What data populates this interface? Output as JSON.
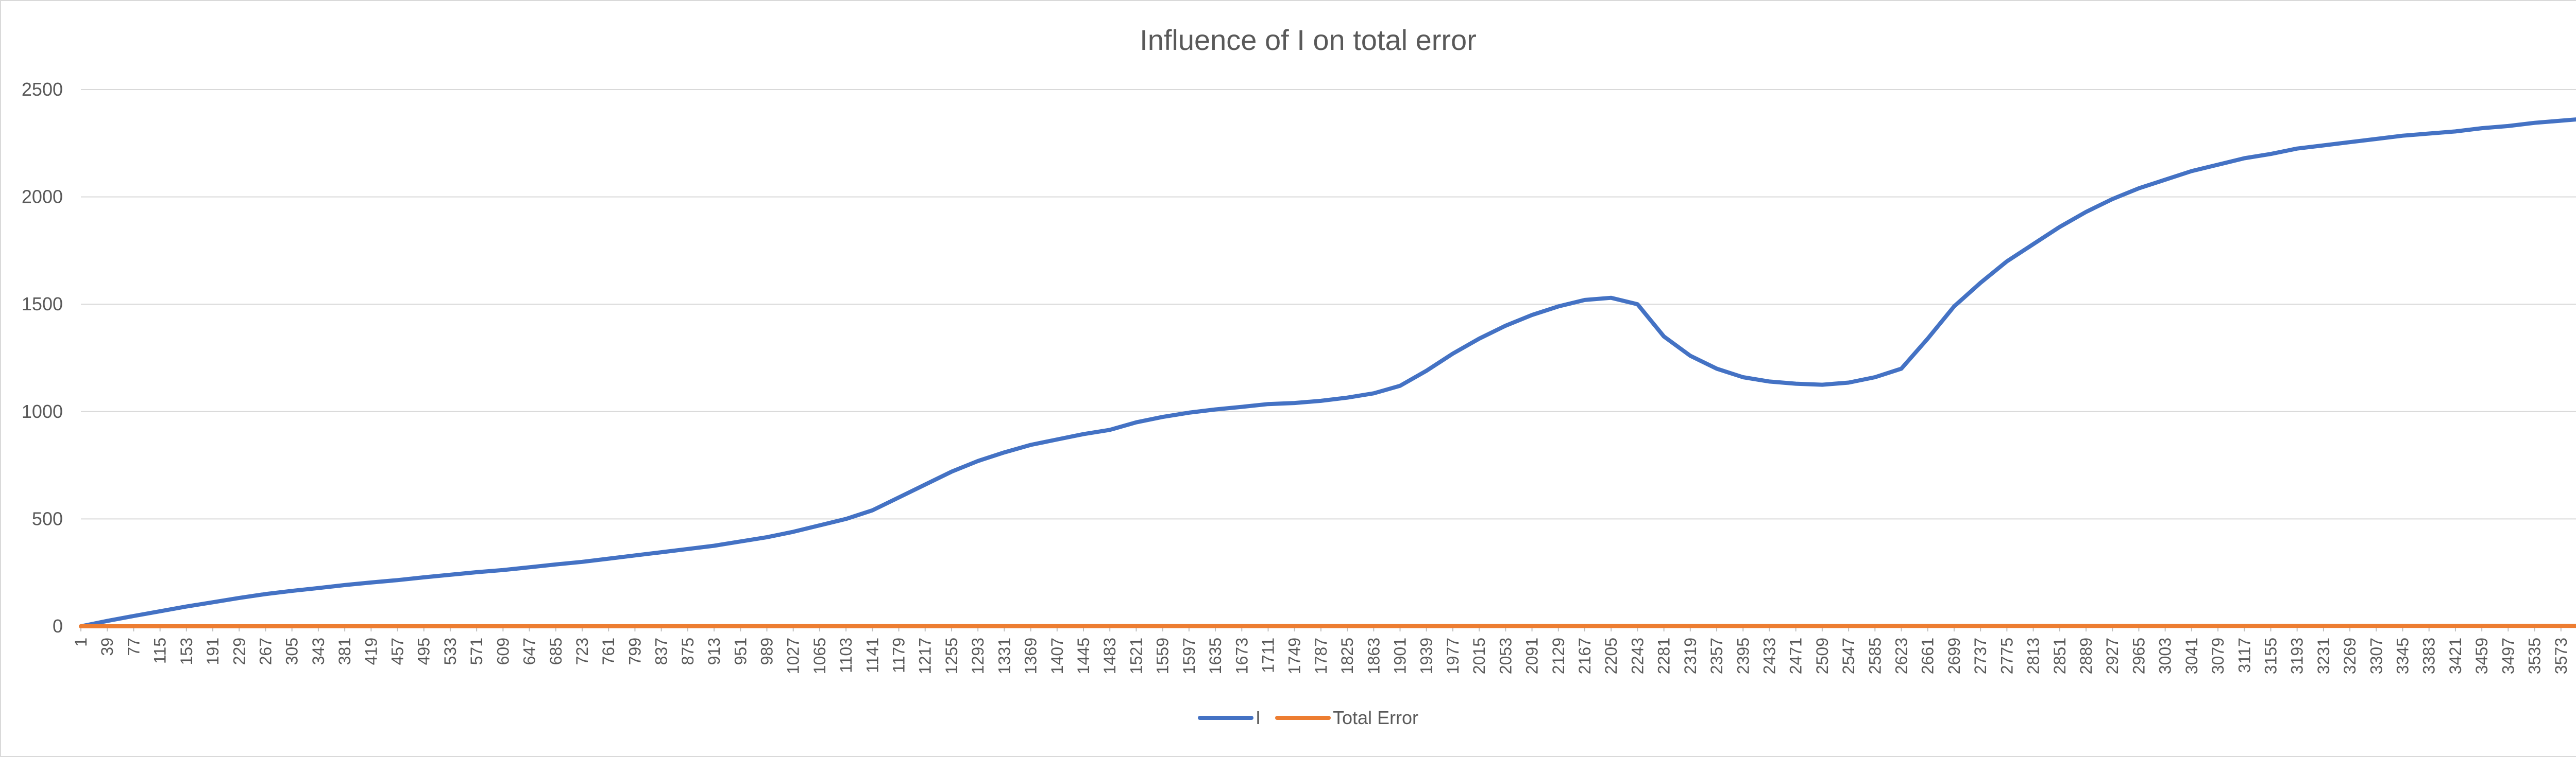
{
  "chart_data": {
    "type": "line",
    "title": "Influence of I on total error",
    "xlabel": "",
    "ylabel": "",
    "ylim": [
      0,
      2500
    ],
    "y_ticks": [
      0,
      500,
      1000,
      1500,
      2000,
      2500
    ],
    "x_range": [
      1,
      3611
    ],
    "x_ticks": [
      1,
      39,
      77,
      115,
      153,
      191,
      229,
      267,
      305,
      343,
      381,
      419,
      457,
      495,
      533,
      571,
      609,
      647,
      685,
      723,
      761,
      799,
      837,
      875,
      913,
      951,
      989,
      1027,
      1065,
      1103,
      1141,
      1179,
      1217,
      1255,
      1293,
      1331,
      1369,
      1407,
      1445,
      1483,
      1521,
      1559,
      1597,
      1635,
      1673,
      1711,
      1749,
      1787,
      1825,
      1863,
      1901,
      1939,
      1977,
      2015,
      2053,
      2091,
      2129,
      2167,
      2205,
      2243,
      2281,
      2319,
      2357,
      2395,
      2433,
      2471,
      2509,
      2547,
      2585,
      2623,
      2661,
      2699,
      2737,
      2775,
      2813,
      2851,
      2889,
      2927,
      2965,
      3003,
      3041,
      3079,
      3117,
      3155,
      3193,
      3231,
      3269,
      3307,
      3345,
      3383,
      3421,
      3459,
      3497,
      3535,
      3573
    ],
    "grid": true,
    "legend_position": "bottom",
    "series": [
      {
        "name": "I",
        "color": "#4472c4",
        "points": [
          [
            1,
            0
          ],
          [
            39,
            25
          ],
          [
            77,
            48
          ],
          [
            115,
            70
          ],
          [
            153,
            92
          ],
          [
            191,
            112
          ],
          [
            229,
            132
          ],
          [
            267,
            150
          ],
          [
            305,
            165
          ],
          [
            343,
            178
          ],
          [
            381,
            192
          ],
          [
            419,
            204
          ],
          [
            457,
            215
          ],
          [
            495,
            228
          ],
          [
            533,
            240
          ],
          [
            571,
            252
          ],
          [
            609,
            262
          ],
          [
            647,
            275
          ],
          [
            685,
            288
          ],
          [
            723,
            300
          ],
          [
            761,
            315
          ],
          [
            799,
            330
          ],
          [
            837,
            345
          ],
          [
            875,
            360
          ],
          [
            913,
            375
          ],
          [
            951,
            395
          ],
          [
            989,
            415
          ],
          [
            1027,
            440
          ],
          [
            1065,
            470
          ],
          [
            1103,
            500
          ],
          [
            1141,
            540
          ],
          [
            1179,
            600
          ],
          [
            1217,
            660
          ],
          [
            1255,
            720
          ],
          [
            1293,
            770
          ],
          [
            1331,
            810
          ],
          [
            1369,
            845
          ],
          [
            1407,
            870
          ],
          [
            1445,
            895
          ],
          [
            1483,
            915
          ],
          [
            1521,
            950
          ],
          [
            1559,
            975
          ],
          [
            1597,
            995
          ],
          [
            1635,
            1010
          ],
          [
            1673,
            1022
          ],
          [
            1711,
            1035
          ],
          [
            1749,
            1040
          ],
          [
            1787,
            1050
          ],
          [
            1825,
            1065
          ],
          [
            1863,
            1085
          ],
          [
            1901,
            1120
          ],
          [
            1939,
            1190
          ],
          [
            1977,
            1270
          ],
          [
            2015,
            1340
          ],
          [
            2053,
            1400
          ],
          [
            2091,
            1450
          ],
          [
            2129,
            1490
          ],
          [
            2167,
            1520
          ],
          [
            2205,
            1530
          ],
          [
            2243,
            1500
          ],
          [
            2281,
            1350
          ],
          [
            2319,
            1260
          ],
          [
            2357,
            1200
          ],
          [
            2395,
            1160
          ],
          [
            2433,
            1140
          ],
          [
            2471,
            1130
          ],
          [
            2509,
            1125
          ],
          [
            2547,
            1135
          ],
          [
            2585,
            1160
          ],
          [
            2623,
            1200
          ],
          [
            2661,
            1340
          ],
          [
            2699,
            1490
          ],
          [
            2737,
            1600
          ],
          [
            2775,
            1700
          ],
          [
            2813,
            1780
          ],
          [
            2851,
            1860
          ],
          [
            2889,
            1930
          ],
          [
            2927,
            1990
          ],
          [
            2965,
            2040
          ],
          [
            3003,
            2080
          ],
          [
            3041,
            2120
          ],
          [
            3079,
            2150
          ],
          [
            3117,
            2180
          ],
          [
            3155,
            2200
          ],
          [
            3193,
            2225
          ],
          [
            3231,
            2240
          ],
          [
            3269,
            2255
          ],
          [
            3307,
            2270
          ],
          [
            3345,
            2285
          ],
          [
            3383,
            2295
          ],
          [
            3421,
            2305
          ],
          [
            3459,
            2320
          ],
          [
            3497,
            2330
          ],
          [
            3535,
            2345
          ],
          [
            3573,
            2355
          ],
          [
            3611,
            2365
          ]
        ]
      },
      {
        "name": "Total Error",
        "color": "#ed7d31",
        "points": [
          [
            1,
            0
          ],
          [
            3611,
            2
          ]
        ]
      }
    ]
  }
}
